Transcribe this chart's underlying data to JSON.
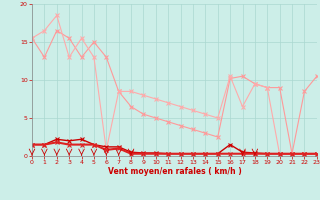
{
  "xlabel": "Vent moyen/en rafales ( km/h )",
  "xlim": [
    0,
    23
  ],
  "ylim": [
    0,
    20
  ],
  "xticks": [
    0,
    1,
    2,
    3,
    4,
    5,
    6,
    7,
    8,
    9,
    10,
    11,
    12,
    13,
    14,
    15,
    16,
    17,
    18,
    19,
    20,
    21,
    22,
    23
  ],
  "yticks": [
    0,
    5,
    10,
    15,
    20
  ],
  "background_color": "#cceee8",
  "grid_color": "#aad8d0",
  "series": [
    {
      "x": [
        0,
        1,
        2,
        3,
        4,
        5,
        6,
        7,
        8,
        9,
        10,
        11,
        12,
        13,
        14,
        15,
        16,
        17,
        18,
        19,
        20,
        21,
        22,
        23
      ],
      "y": [
        15.5,
        13.0,
        16.5,
        15.5,
        13.0,
        15.0,
        13.0,
        8.5,
        6.5,
        5.5,
        5.0,
        4.5,
        4.0,
        3.5,
        3.0,
        2.5,
        10.2,
        10.5,
        9.5,
        9.0,
        9.0,
        0.3,
        8.5,
        10.5
      ],
      "color": "#ff9999",
      "lw": 0.8,
      "marker": "x",
      "ms": 3
    },
    {
      "x": [
        0,
        1,
        2,
        3,
        4,
        5,
        6,
        7,
        8,
        9,
        10,
        11,
        12,
        13,
        14,
        15,
        16,
        17,
        18,
        19,
        20,
        21,
        22,
        23
      ],
      "y": [
        15.5,
        16.5,
        18.5,
        13.0,
        15.5,
        13.0,
        0.8,
        8.5,
        8.5,
        8.0,
        7.5,
        7.0,
        6.5,
        6.0,
        5.5,
        5.0,
        10.5,
        6.5,
        9.5,
        9.0,
        0.2,
        0.2,
        0.2,
        0.2
      ],
      "color": "#ffaaaa",
      "lw": 0.8,
      "marker": "x",
      "ms": 3
    },
    {
      "x": [
        0,
        1,
        2,
        3,
        4,
        5,
        6,
        7,
        8,
        9,
        10,
        11,
        12,
        13,
        14,
        15,
        16,
        17,
        18,
        19,
        20,
        21,
        22,
        23
      ],
      "y": [
        1.5,
        1.5,
        2.2,
        2.0,
        2.2,
        1.5,
        1.2,
        1.2,
        0.5,
        0.4,
        0.4,
        0.3,
        0.3,
        0.3,
        0.3,
        0.3,
        1.5,
        0.5,
        0.4,
        0.3,
        0.3,
        0.3,
        0.3,
        0.3
      ],
      "color": "#cc0000",
      "lw": 1.0,
      "marker": "x",
      "ms": 3
    },
    {
      "x": [
        0,
        1,
        2,
        3,
        4,
        5,
        6,
        7,
        8,
        9,
        10,
        11,
        12,
        13,
        14,
        15,
        16,
        17,
        18,
        19,
        20,
        21,
        22,
        23
      ],
      "y": [
        1.5,
        1.5,
        1.8,
        1.5,
        1.5,
        1.5,
        0.8,
        1.0,
        0.3,
        0.3,
        0.3,
        0.3,
        0.3,
        0.3,
        0.3,
        0.3,
        0.3,
        0.3,
        0.3,
        0.3,
        0.3,
        0.3,
        0.3,
        0.3
      ],
      "color": "#dd2222",
      "lw": 1.5,
      "marker": "x",
      "ms": 3
    }
  ],
  "arrows_x": [
    0,
    1,
    2,
    3,
    4,
    5,
    6,
    7,
    8,
    17,
    18
  ],
  "arrow_color": "#cc0000"
}
